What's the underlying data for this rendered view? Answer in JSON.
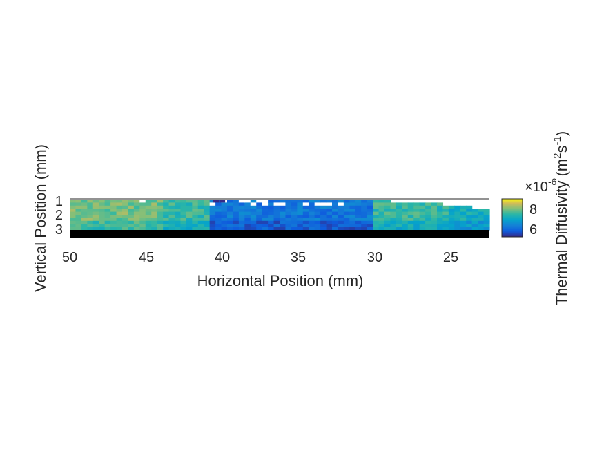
{
  "chart_data": {
    "type": "heatmap",
    "title": "",
    "xlabel": "Horizontal Position (mm)",
    "ylabel": "Vertical Position (mm)",
    "x_direction": "reversed",
    "xlim": [
      50,
      22.5
    ],
    "ylim": [
      3.5,
      0.9
    ],
    "x_ticks": [
      "50",
      "45",
      "40",
      "35",
      "30",
      "25"
    ],
    "y_ticks": [
      "1",
      "2",
      "3"
    ],
    "colorbar": {
      "label_main": "Thermal Diffusivity (m",
      "label_sup1": "2",
      "label_mid": "s",
      "label_sup2": "-1",
      "label_end": ")",
      "multiplier_prefix": "×10",
      "multiplier_exp": "-6",
      "ticks": [
        "8",
        "6"
      ],
      "range": [
        5.2,
        8.7
      ],
      "colormap": "parula"
    },
    "grid": false,
    "colors": {
      "low": "#352a87",
      "mid_low": "#1b8ed4",
      "mid": "#19b5a8",
      "mid_high": "#8fc54c",
      "high": "#f9d82b",
      "missing": "#ffffff",
      "substrate": "#000000"
    },
    "data_regions": [
      {
        "x_from": 50,
        "x_to": 44,
        "typical_value": 7.7
      },
      {
        "x_from": 44,
        "x_to": 41,
        "typical_value": 7.3
      },
      {
        "x_from": 41,
        "x_to": 30,
        "typical_value": 6.1
      },
      {
        "x_from": 30,
        "x_to": 25,
        "typical_value": 7.3
      },
      {
        "x_from": 25,
        "x_to": 22.5,
        "typical_value": 7.0
      }
    ]
  }
}
